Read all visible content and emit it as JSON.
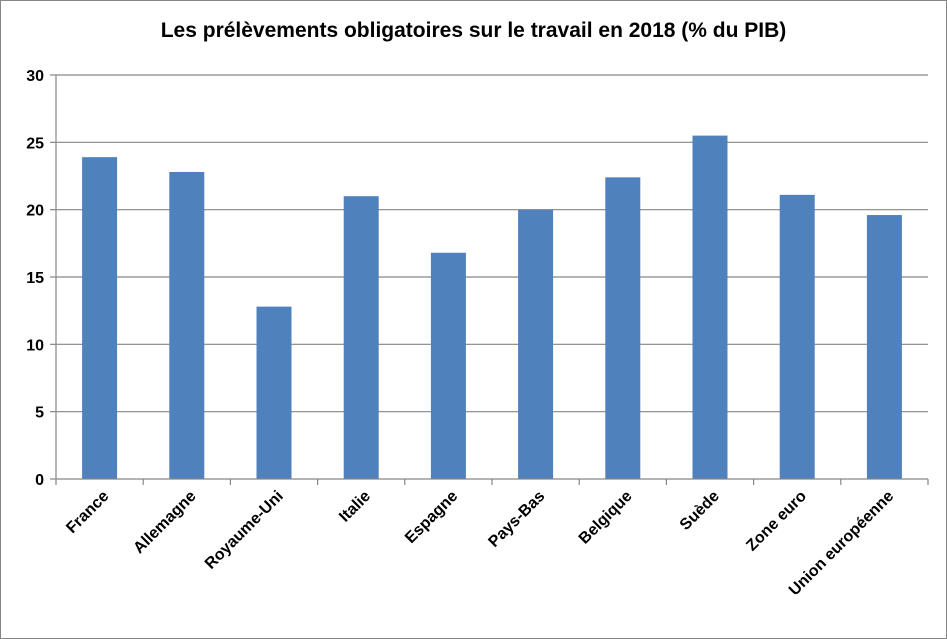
{
  "chart_data": {
    "type": "bar",
    "title": "Les prélèvements obligatoires sur le travail en 2018 (% du PIB)",
    "xlabel": "",
    "ylabel": "",
    "categories": [
      "France",
      "Allemagne",
      "Royaume-Uni",
      "Italie",
      "Espagne",
      "Pays-Bas",
      "Belgique",
      "Suède",
      "Zone euro",
      "Union européenne"
    ],
    "values": [
      23.9,
      22.8,
      12.8,
      21.0,
      16.8,
      20.0,
      22.4,
      25.5,
      21.1,
      19.6
    ],
    "ylim": [
      0,
      30
    ],
    "yticks": [
      0,
      5,
      10,
      15,
      20,
      25,
      30
    ],
    "grid": true,
    "legend": "none",
    "bar_color": "#4F81BD",
    "grid_color": "#868686"
  }
}
